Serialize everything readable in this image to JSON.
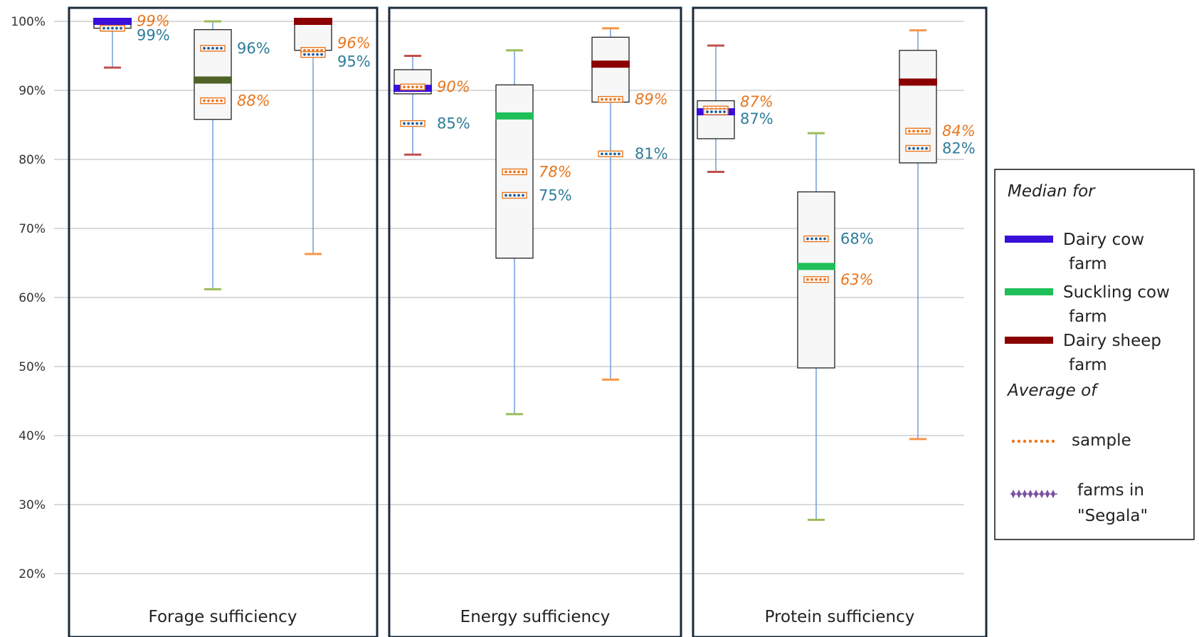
{
  "chart_data": {
    "type": "box",
    "title": "",
    "xlabel": "",
    "ylabel": "",
    "ylim": [
      0.2,
      1.0
    ],
    "y_ticks": [
      "20%",
      "30%",
      "40%",
      "50%",
      "60%",
      "70%",
      "80%",
      "90%",
      "100%"
    ],
    "grid": true,
    "legend_position": "right",
    "panels": [
      "Forage sufficiency",
      "Energy sufficiency",
      "Protein sufficiency"
    ],
    "farm_types": [
      "Dairy cow farm",
      "Suckling cow farm",
      "Dairy sheep farm"
    ],
    "boxes": [
      {
        "panel": 0,
        "farm": 0,
        "min": 0.933,
        "q1": 0.99,
        "median": 1.0,
        "q3": 1.0,
        "max": 1.0,
        "sample_avg": 0.99,
        "segala_avg": 0.99,
        "sample_label": "99%",
        "segala_label": "99%"
      },
      {
        "panel": 0,
        "farm": 1,
        "min": 0.612,
        "q1": 0.858,
        "median": 0.915,
        "q3": 0.988,
        "max": 1.0,
        "sample_avg": 0.885,
        "segala_avg": 0.961,
        "sample_label": "88%",
        "segala_label": "96%"
      },
      {
        "panel": 0,
        "farm": 2,
        "min": 0.663,
        "q1": 0.958,
        "median": 1.0,
        "q3": 1.0,
        "max": 1.0,
        "sample_avg": 0.958,
        "segala_avg": 0.952,
        "sample_label": "96%",
        "segala_label": "95%"
      },
      {
        "panel": 1,
        "farm": 0,
        "min": 0.807,
        "q1": 0.895,
        "median": 0.903,
        "q3": 0.93,
        "max": 0.95,
        "sample_avg": 0.905,
        "segala_avg": 0.852,
        "sample_label": "90%",
        "segala_label": "85%"
      },
      {
        "panel": 1,
        "farm": 1,
        "min": 0.431,
        "q1": 0.657,
        "median": 0.863,
        "q3": 0.908,
        "max": 0.958,
        "sample_avg": 0.782,
        "segala_avg": 0.748,
        "sample_label": "78%",
        "segala_label": "75%"
      },
      {
        "panel": 1,
        "farm": 2,
        "min": 0.481,
        "q1": 0.883,
        "median": 0.938,
        "q3": 0.977,
        "max": 0.99,
        "sample_avg": 0.887,
        "segala_avg": 0.808,
        "sample_label": "89%",
        "segala_label": "81%"
      },
      {
        "panel": 2,
        "farm": 0,
        "min": 0.782,
        "q1": 0.83,
        "median": 0.869,
        "q3": 0.885,
        "max": 0.965,
        "sample_avg": 0.873,
        "segala_avg": 0.869,
        "sample_label": "87%",
        "segala_label": "87%"
      },
      {
        "panel": 2,
        "farm": 1,
        "min": 0.278,
        "q1": 0.498,
        "median": 0.645,
        "q3": 0.753,
        "max": 0.838,
        "sample_avg": 0.626,
        "segala_avg": 0.685,
        "sample_label": "63%",
        "segala_label": "68%"
      },
      {
        "panel": 2,
        "farm": 2,
        "min": 0.395,
        "q1": 0.795,
        "median": 0.912,
        "q3": 0.958,
        "max": 0.987,
        "sample_avg": 0.841,
        "segala_avg": 0.816,
        "sample_label": "84%",
        "segala_label": "82%"
      }
    ],
    "colors": {
      "median": [
        "#3a0fd9",
        "#1fbf59",
        "#8b0000"
      ],
      "whisker_cap": [
        "#c0504d",
        "#9bbb59",
        "#f79646"
      ],
      "forage_suckling_median": "#4f6228",
      "sample_marker": "#e8761e",
      "segala_marker": "#1f5f9f",
      "label_blue": "#2e7d9a",
      "label_orange": "#e8761e"
    },
    "legend": {
      "median_heading": "Median for",
      "average_heading": "Average of",
      "items": [
        {
          "line1": "Dairy cow",
          "line2": "farm",
          "color": "#3a0fd9"
        },
        {
          "line1": "Suckling cow",
          "line2": "farm",
          "color": "#1fbf59"
        },
        {
          "line1": "Dairy sheep",
          "line2": "farm",
          "color": "#8b0000"
        }
      ],
      "avg_items": [
        {
          "line1": "sample",
          "line2": "",
          "icon": "orange-dotted-marker"
        },
        {
          "line1": "farms in",
          "line2": "\"Segala\"",
          "icon": "purple-diamond-marker"
        }
      ]
    }
  }
}
